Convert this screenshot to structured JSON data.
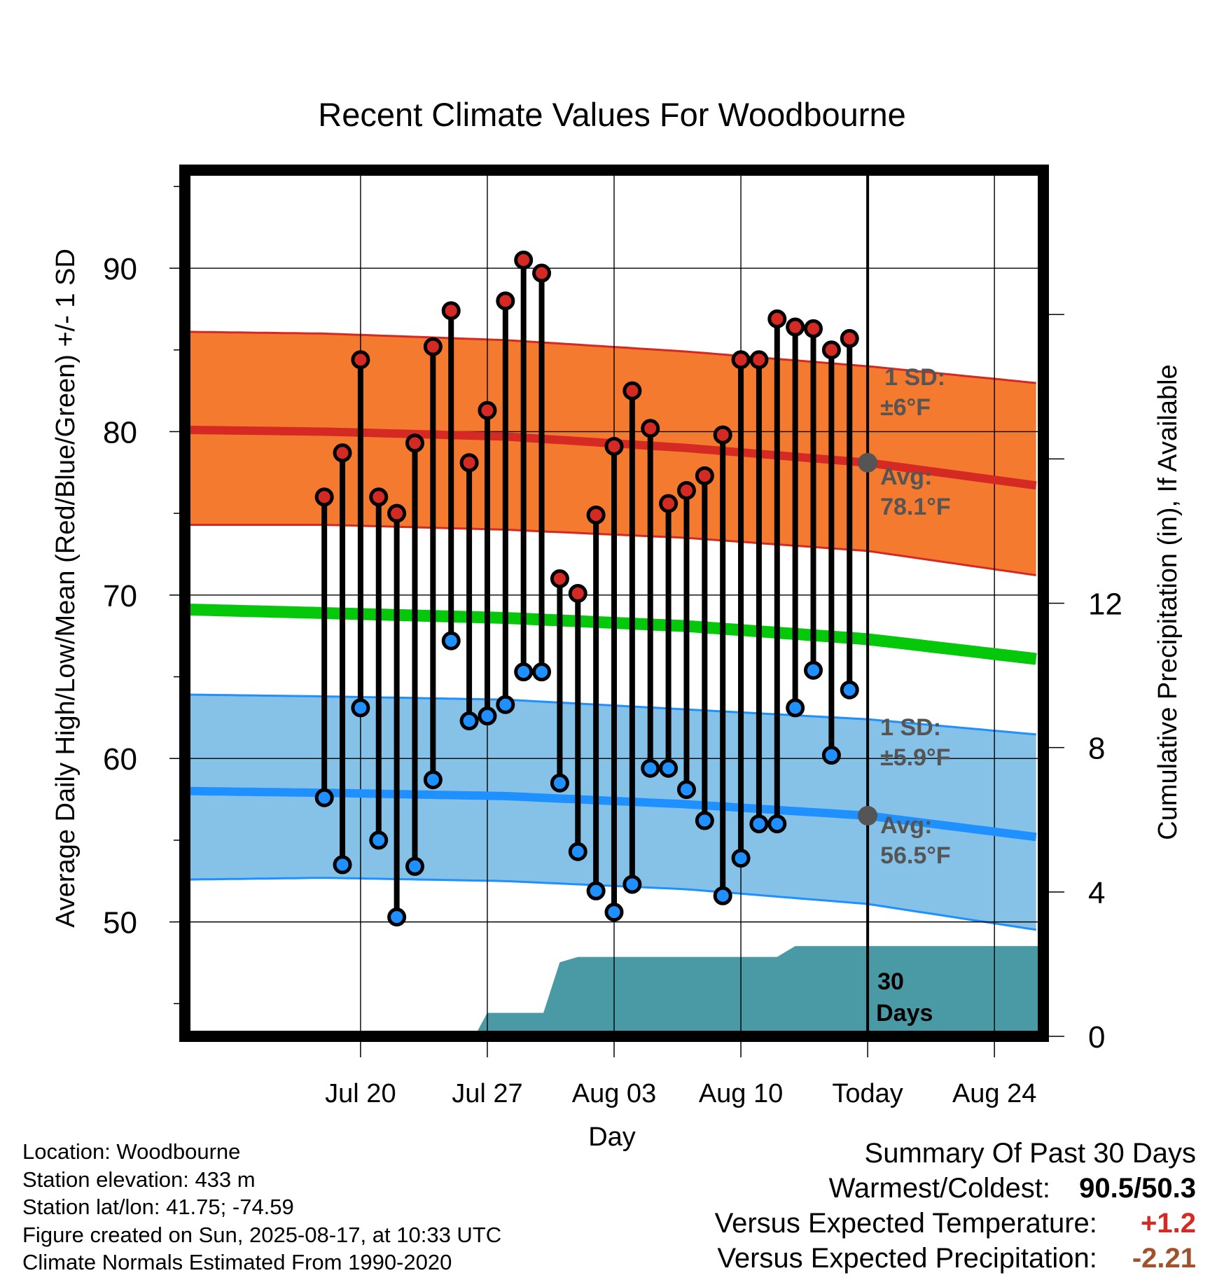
{
  "chart_data": {
    "type": "line",
    "title": "Recent Climate Values For Woodbourne",
    "xlabel": "Day",
    "ylabel_left": "Average Daily High/Low/Mean (Red/Blue/Green) +/- 1 SD",
    "ylabel_right": "Cumulative Precipitation (in), If Available",
    "x_range_days": [
      -37.7,
      9.7
    ],
    "ylim_left": [
      43,
      96
    ],
    "ylim_right": [
      0,
      24
    ],
    "grid": true,
    "x_ticks": [
      {
        "day": -28,
        "label": "Jul 20"
      },
      {
        "day": -21,
        "label": "Jul 27"
      },
      {
        "day": -14,
        "label": "Aug 03"
      },
      {
        "day": -7,
        "label": "Aug 10"
      },
      {
        "day": 0,
        "label": "Today"
      },
      {
        "day": 7,
        "label": "Aug 24"
      }
    ],
    "y_ticks_left": [
      50,
      60,
      70,
      80,
      90
    ],
    "y_ticks_right": [
      0,
      4,
      8,
      12
    ],
    "daily_days": [
      -30,
      -29,
      -28,
      -27,
      -26,
      -25,
      -24,
      -23,
      -22,
      -21,
      -20,
      -19,
      -18,
      -17,
      -16,
      -15,
      -14,
      -13,
      -12,
      -11,
      -10,
      -9,
      -8,
      -7,
      -6,
      -5,
      -4,
      -3,
      -2,
      -1
    ],
    "daily_high": [
      76.0,
      78.7,
      84.4,
      76.0,
      75.0,
      79.3,
      85.2,
      87.4,
      78.1,
      81.3,
      88.0,
      90.5,
      89.7,
      71.0,
      70.1,
      74.9,
      79.1,
      82.5,
      80.2,
      75.6,
      76.4,
      77.3,
      79.8,
      84.4,
      84.4,
      86.9,
      86.4,
      86.3,
      85.0,
      85.7
    ],
    "daily_low": [
      57.6,
      53.5,
      63.1,
      55.0,
      50.3,
      53.4,
      58.7,
      67.2,
      62.3,
      62.6,
      63.3,
      65.3,
      65.3,
      58.5,
      54.3,
      51.9,
      50.6,
      52.3,
      59.4,
      59.4,
      58.1,
      56.2,
      51.6,
      53.9,
      56.0,
      56.0,
      63.1,
      65.4,
      60.2,
      64.2
    ],
    "normal_days": [
      -37,
      -30,
      -20,
      -10,
      0,
      10
    ],
    "normal_high": [
      80.1,
      80.0,
      79.7,
      79.0,
      78.1,
      76.6
    ],
    "normal_high_upper": [
      86.1,
      86.0,
      85.6,
      84.9,
      84.0,
      82.9
    ],
    "normal_high_lower": [
      74.3,
      74.3,
      74.0,
      73.5,
      72.7,
      71.1
    ],
    "normal_mean": [
      69.1,
      68.9,
      68.6,
      68.1,
      67.3,
      66.0
    ],
    "normal_low": [
      58.0,
      57.9,
      57.7,
      57.2,
      56.5,
      55.1
    ],
    "normal_low_upper": [
      63.9,
      63.8,
      63.6,
      63.0,
      62.4,
      61.4
    ],
    "normal_low_lower": [
      52.6,
      52.7,
      52.5,
      52.0,
      51.1,
      49.4
    ],
    "precip_days": [
      -37,
      -21.7,
      -21,
      -17.9,
      -17,
      -16,
      -5,
      -4,
      0,
      9.7
    ],
    "precip_cumulative": [
      0,
      0,
      0.65,
      0.65,
      2.05,
      2.2,
      2.2,
      2.5,
      2.5,
      2.5
    ],
    "annotations": {
      "high_sd_line1": "1 SD:",
      "high_sd_line2": "±6°F",
      "high_avg_line1": "Avg:",
      "high_avg_line2": "78.1°F",
      "low_sd_line1": "1 SD:",
      "low_sd_line2": "±5.9°F",
      "low_avg_line1": "Avg:",
      "low_avg_line2": "56.5°F",
      "period_line1": "30",
      "period_line2": "Days"
    },
    "colors": {
      "high_band": "#f47a2f",
      "high_line": "#d42a23",
      "mean_line": "#06c80b",
      "low_band": "#86c2e8",
      "low_line": "#1e90ff",
      "precip": "#4a9aa5",
      "high_marker": "#d42a23",
      "low_marker": "#1e90ff"
    }
  },
  "footer": {
    "location": "Location: Woodbourne",
    "elevation": "Station elevation: 433 m",
    "latlon": "Station lat/lon: 41.75; -74.59",
    "created": "Figure created on Sun, 2025-08-17, at 10:33 UTC",
    "normals": "Climate Normals Estimated From 1990-2020"
  },
  "summary": {
    "title": "Summary Of Past 30 Days",
    "warm_cold_label": "Warmest/Coldest:",
    "warmest": "90.5",
    "coldest": "50.3",
    "temp_label": "Versus Expected Temperature:",
    "temp_value": "+1.2",
    "precip_label": "Versus Expected Precipitation:",
    "precip_value": "-2.21",
    "temp_color": "#d42a23",
    "precip_color": "#a0522d"
  }
}
